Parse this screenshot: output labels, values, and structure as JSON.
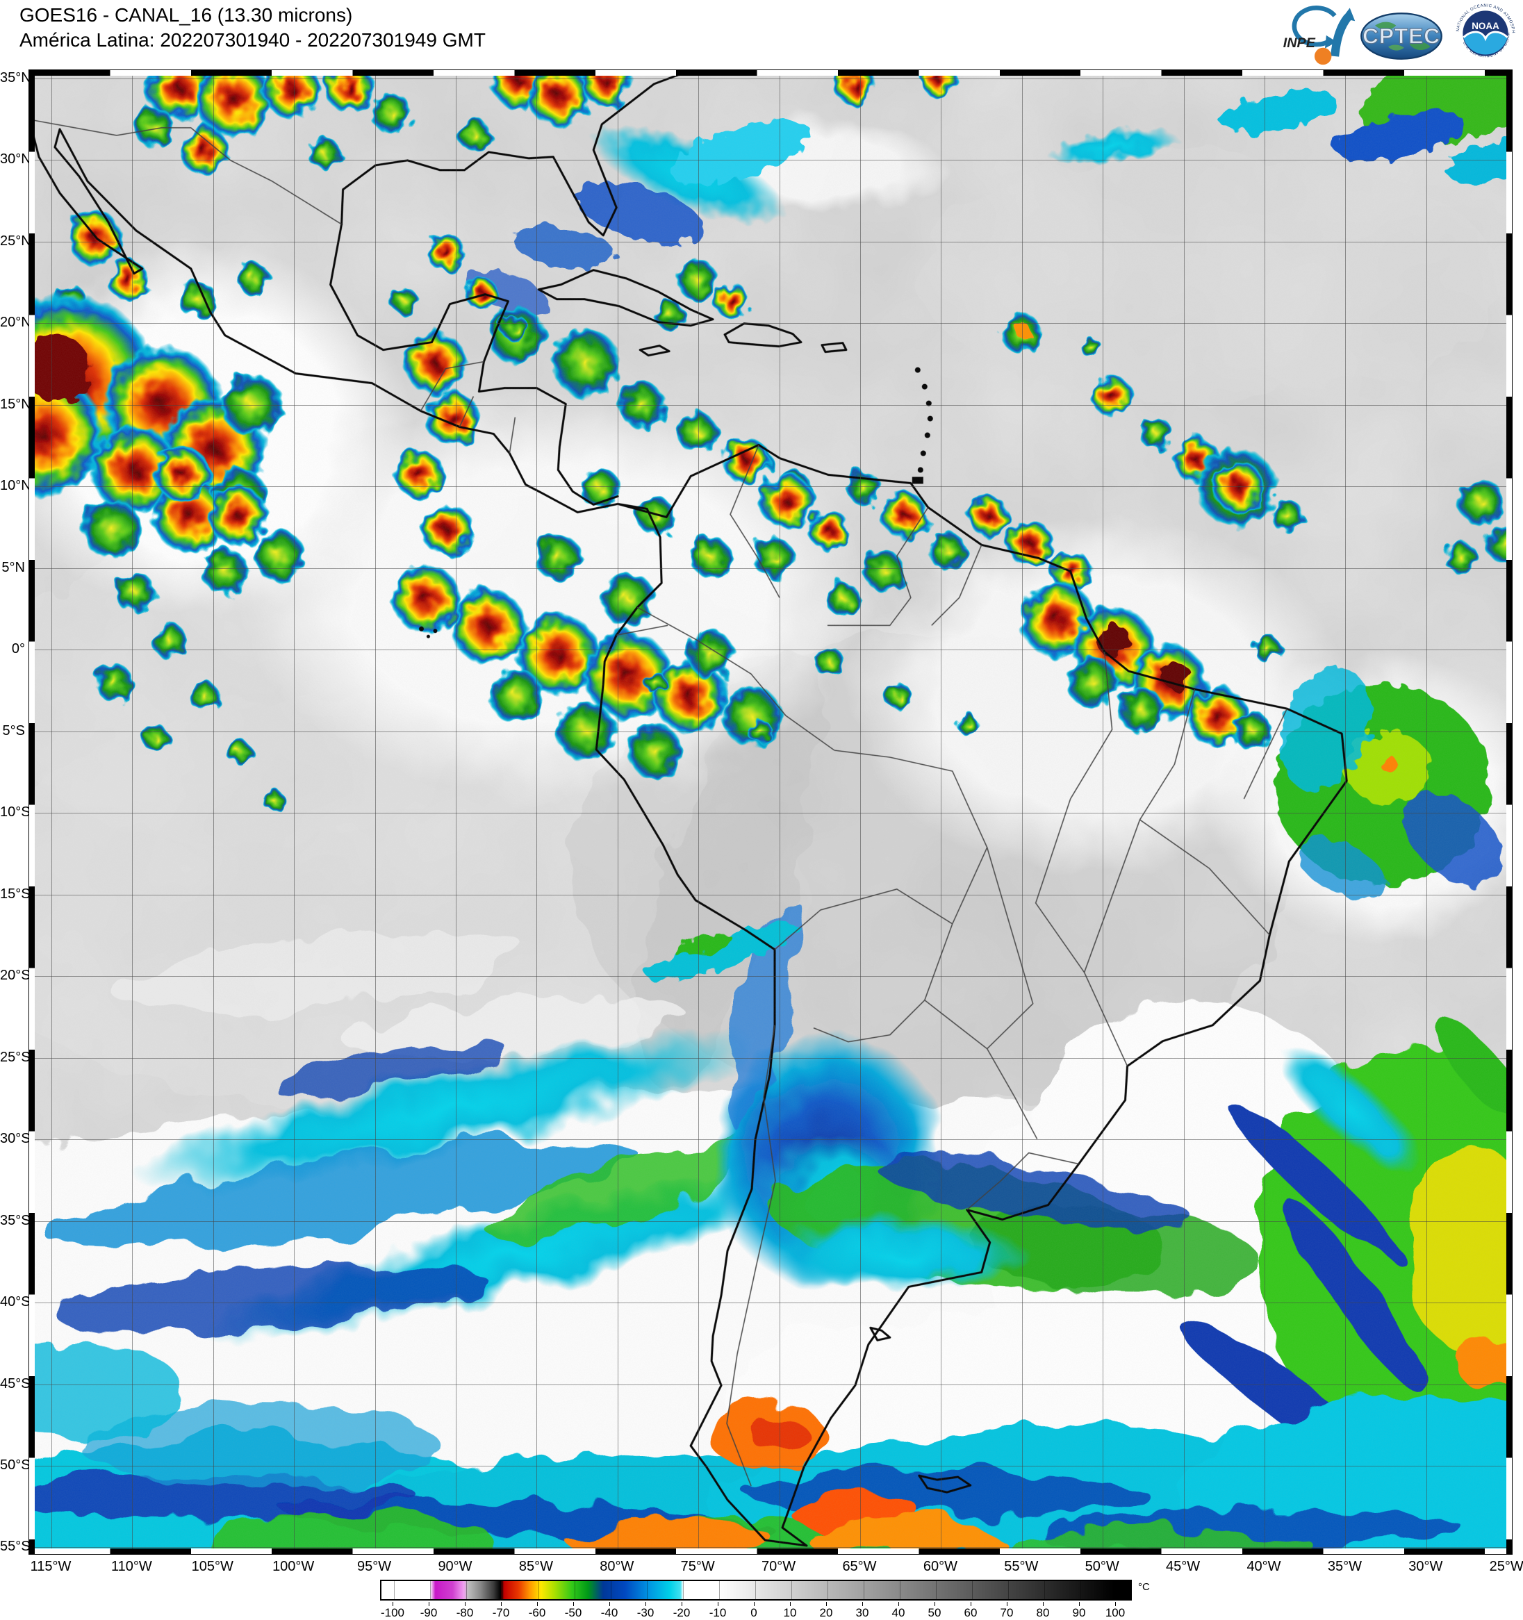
{
  "header": {
    "title_line1": "GOES16 - CANAL_16 (13.30 microns)",
    "title_line2": "América Latina: 202207301940 - 202207301949 GMT",
    "logos": {
      "inpe": {
        "label": "INPE"
      },
      "cptec": {
        "label": "CPTEC"
      },
      "noaa": {
        "label": "NOAA",
        "ring_text_top": "NATIONAL OCEANIC AND ATMOSPHERIC ADMINISTRATION",
        "ring_text_bottom": "U.S. DEPARTMENT OF COMMERCE"
      }
    }
  },
  "map": {
    "lat_labels": [
      "35°N",
      "30°N",
      "25°N",
      "20°N",
      "15°N",
      "10°N",
      "5°N",
      "0°",
      "5°S",
      "10°S",
      "15°S",
      "20°S",
      "25°S",
      "30°S",
      "35°S",
      "40°S",
      "45°S",
      "50°S",
      "55°S"
    ],
    "lon_labels": [
      "115°W",
      "110°W",
      "105°W",
      "100°W",
      "95°W",
      "90°W",
      "85°W",
      "80°W",
      "75°W",
      "70°W",
      "65°W",
      "60°W",
      "55°W",
      "50°W",
      "45°W",
      "40°W",
      "35°W",
      "30°W",
      "25°W"
    ]
  },
  "colorbar": {
    "unit": "°C",
    "tick_labels": [
      "-100",
      "-90",
      "-80",
      "-70",
      "-60",
      "-50",
      "-40",
      "-30",
      "-20",
      "-10",
      "0",
      "10",
      "20",
      "30",
      "40",
      "50",
      "60",
      "70",
      "80",
      "90",
      "100"
    ],
    "scale_colors": {
      "white_warm": "#ffffff",
      "magenta": "#c818c8",
      "gray_ramp": "#8a8a8a",
      "black": "#000000",
      "red": "#c40000",
      "orange": "#ff9800",
      "yellow": "#ffe800",
      "green": "#30c818",
      "dark_blue": "#003898",
      "cyan": "#00d0e8"
    }
  }
}
